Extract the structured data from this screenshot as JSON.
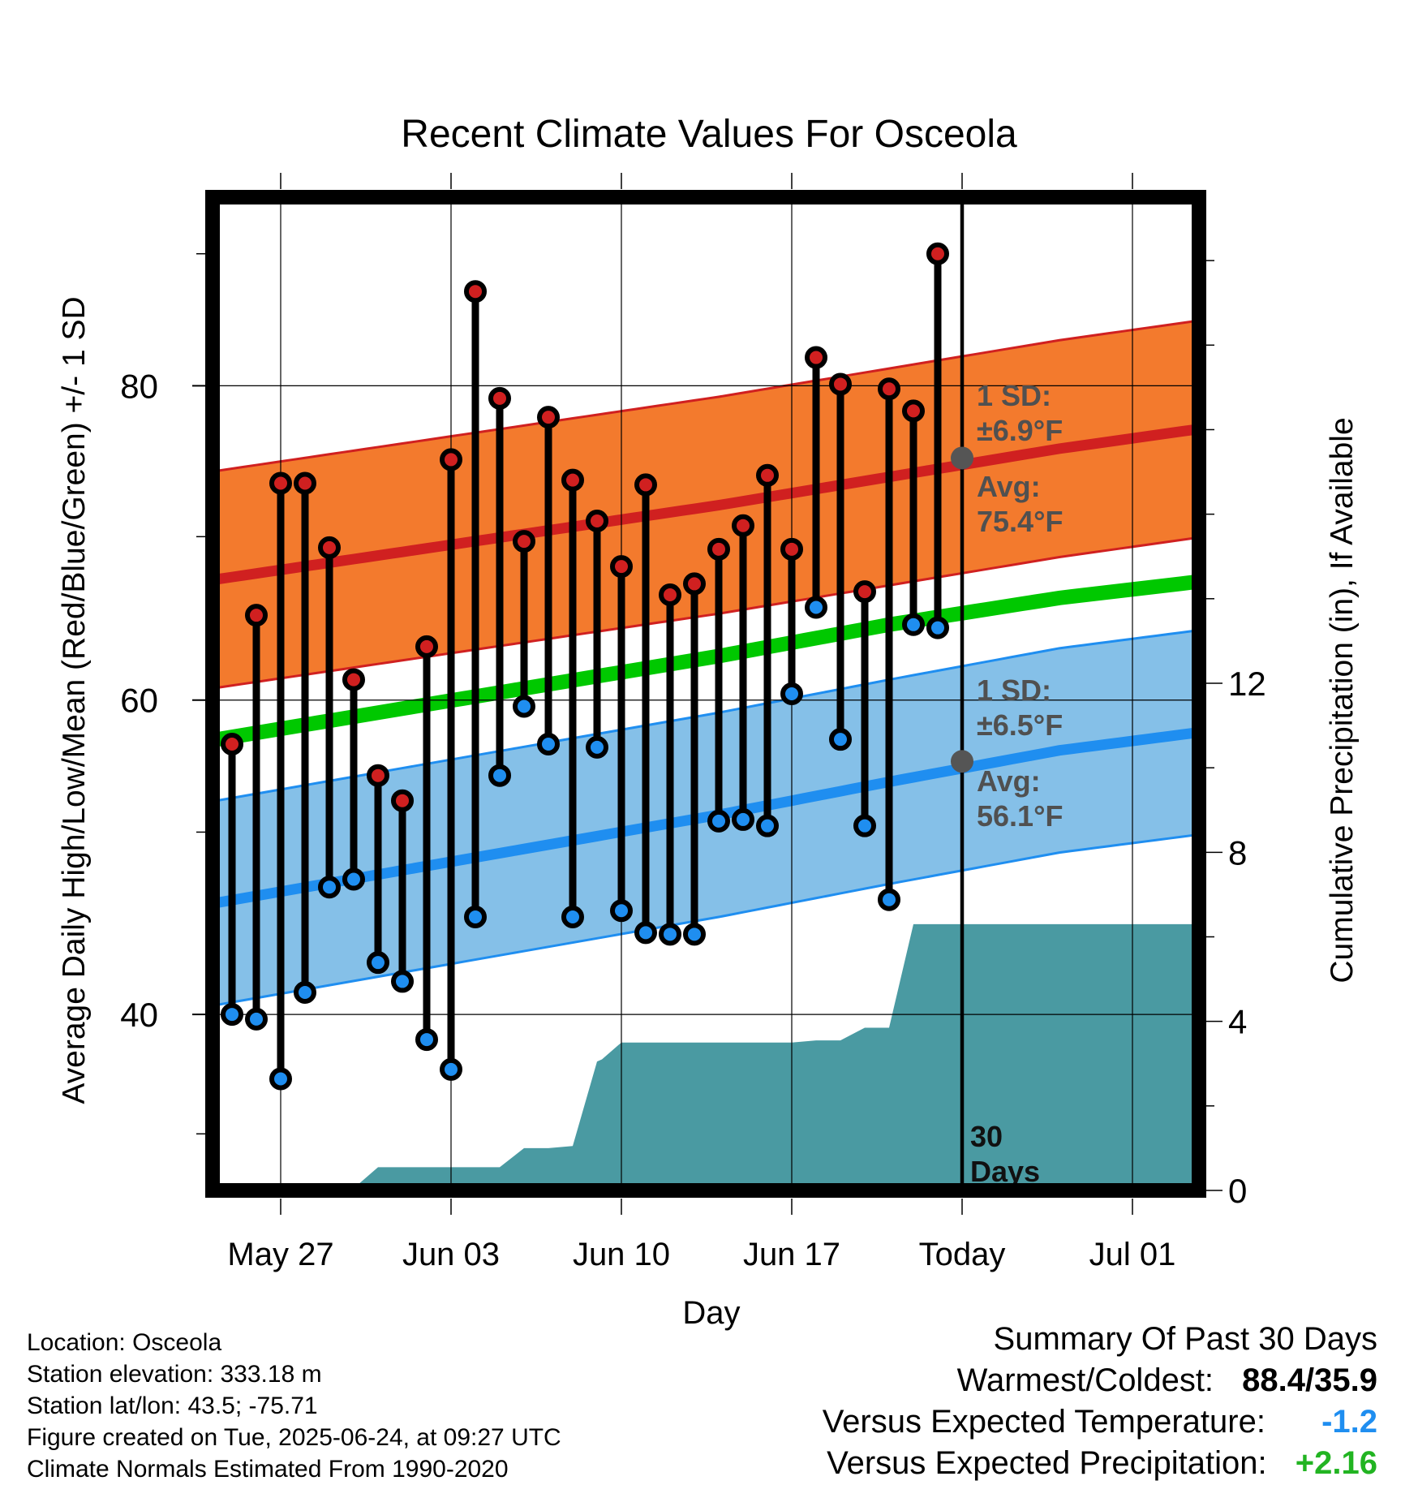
{
  "title": "Recent Climate Values For Osceola",
  "xlabel": "Day",
  "ylabel": "Average Daily High/Low/Mean (Red/Blue/Green) +/- 1 SD",
  "y2label": "Cumulative Precipitation (in), If Available",
  "annotations": {
    "high_sd_line1": "1 SD:",
    "high_sd_line2": "±6.9°F",
    "high_avg_line1": "Avg:",
    "high_avg_line2": "75.4°F",
    "low_sd_line1": "1 SD:",
    "low_sd_line2": "±6.5°F",
    "low_avg_line1": "Avg:",
    "low_avg_line2": "56.1°F",
    "period_line1": "30",
    "period_line2": "Days"
  },
  "metadata": {
    "location": "Location: Osceola",
    "elevation": "Station elevation: 333.18 m",
    "latlon": "Station lat/lon: 43.5; -75.71",
    "created": "Figure created on Tue, 2025-06-24, at 09:27 UTC",
    "normals": "Climate Normals Estimated From 1990-2020"
  },
  "summary": {
    "heading": "Summary Of Past 30 Days",
    "warmest_label": "Warmest/Coldest:",
    "warmest_value": "88.4/35.9",
    "temp_label": "Versus Expected Temperature:",
    "temp_value": "-1.2",
    "precip_label": "Versus Expected Precipitation:",
    "precip_value": "+2.16"
  },
  "colors": {
    "high_band": "#f37a2d",
    "high_line": "#d02020",
    "low_band": "#85c0e8",
    "low_line": "#1f8ef0",
    "mean_line": "#00c800",
    "precip": "#4a9aa2",
    "high_marker": "#d02020",
    "low_marker": "#1f8ef0",
    "avg_marker": "#555555",
    "annotation_text": "#505050",
    "temp_value": "#1f8ef0",
    "precip_value": "#22b422"
  },
  "chart_data": {
    "type": "line",
    "x_axis": {
      "ticks": [
        "May 27",
        "Jun 03",
        "Jun 10",
        "Jun 17",
        "Today",
        "Jul 01"
      ],
      "tick_day_offsets": [
        -28,
        -21,
        -14,
        -7,
        0,
        7
      ],
      "range_day_offsets": [
        -31,
        9.5
      ]
    },
    "y_axis": {
      "label": "Average Daily High/Low/Mean (Red/Blue/Green) +/- 1 SD",
      "ticks": [
        40,
        60,
        80
      ],
      "ylim": [
        28.8,
        92
      ]
    },
    "y2_axis": {
      "label": "Cumulative Precipitation (in), If Available",
      "ticks": [
        0,
        4,
        8,
        12
      ],
      "ylim": [
        0,
        23.5
      ]
    },
    "daily_day_offsets": [
      -30,
      -29,
      -28,
      -27,
      -26,
      -25,
      -24,
      -23,
      -22,
      -21,
      -20,
      -19,
      -18,
      -17,
      -16,
      -15,
      -14,
      -13,
      -12,
      -11,
      -10,
      -9,
      -8,
      -7,
      -6,
      -5,
      -4,
      -3,
      -2,
      -1
    ],
    "daily_high": [
      57.2,
      65.4,
      73.8,
      73.8,
      69.7,
      61.3,
      55.2,
      53.6,
      63.4,
      75.3,
      86.0,
      79.2,
      70.1,
      78.0,
      74.0,
      71.4,
      68.5,
      73.7,
      66.7,
      67.4,
      69.6,
      71.1,
      74.3,
      69.6,
      81.8,
      80.1,
      66.9,
      79.8,
      78.4,
      88.4
    ],
    "daily_low": [
      40.0,
      39.7,
      35.9,
      41.4,
      48.1,
      48.6,
      43.3,
      42.1,
      38.4,
      36.5,
      46.2,
      55.2,
      59.6,
      57.2,
      46.2,
      57.0,
      46.6,
      45.2,
      45.1,
      45.1,
      52.3,
      52.4,
      52.0,
      60.4,
      65.9,
      57.5,
      52.0,
      47.3,
      64.8,
      64.6
    ],
    "normal_day_offsets": [
      -31,
      -24,
      -17,
      -10,
      -3,
      4,
      9.5
    ],
    "normal_high": [
      67.6,
      69.2,
      70.8,
      72.4,
      74.2,
      76.0,
      77.2
    ],
    "normal_high_sd": 6.9,
    "normal_low": [
      47.0,
      48.9,
      50.8,
      52.7,
      54.8,
      56.8,
      57.9
    ],
    "normal_low_sd": 6.5,
    "normal_mean": [
      57.4,
      59.2,
      61.0,
      62.8,
      64.8,
      66.5,
      67.5
    ],
    "today_avg_high": 75.4,
    "today_avg_low": 56.1,
    "cumulative_precip_day_offsets": [
      -31,
      -26,
      -25,
      -24,
      -23,
      -22,
      -21,
      -20,
      -19,
      -18,
      -17,
      -16,
      -15,
      -14.8,
      -14,
      -13,
      -12,
      -11,
      -10,
      -9,
      -8,
      -7,
      -6,
      -5,
      -4,
      -3,
      -2,
      -1,
      0,
      9.5
    ],
    "cumulative_precip": [
      0,
      0,
      0.05,
      0.55,
      0.55,
      0.55,
      0.55,
      0.55,
      0.55,
      1.0,
      1.0,
      1.05,
      3.05,
      3.1,
      3.5,
      3.5,
      3.5,
      3.5,
      3.5,
      3.5,
      3.5,
      3.5,
      3.55,
      3.55,
      3.85,
      3.85,
      6.3,
      6.3,
      6.3,
      6.3
    ]
  }
}
